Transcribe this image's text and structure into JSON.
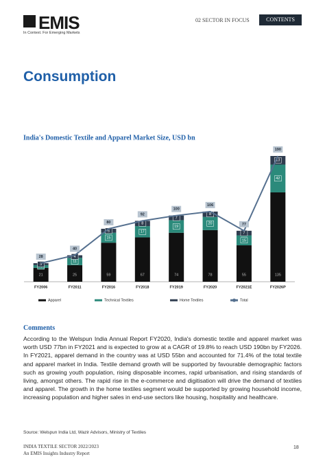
{
  "header": {
    "logo": "EMIS",
    "tagline": "In Context. For Emerging Markets",
    "section": "02 SECTOR IN FOCUS",
    "contents": "CONTENTS"
  },
  "title": "Consumption",
  "chart_data": {
    "type": "bar",
    "stacked": true,
    "title": "India's Domestic Textile and Apparel Market Size, USD bn",
    "categories": [
      "FY2006",
      "FY2011",
      "FY2016",
      "FY2018",
      "FY2019",
      "FY2020",
      "FY2021E",
      "FY2026P"
    ],
    "series": [
      {
        "name": "Apparel",
        "color": "#111111",
        "values": [
          21,
          25,
          59,
          67,
          74,
          78,
          55,
          135
        ]
      },
      {
        "name": "Technical Textiles",
        "color": "#2b8a7b",
        "values": [
          4,
          11,
          15,
          17,
          19,
          20,
          15,
          42
        ]
      },
      {
        "name": "Home Textiles",
        "color": "#2f3d4f",
        "values": [
          3,
          4,
          6,
          8,
          7,
          8,
          7,
          13
        ]
      },
      {
        "name": "Total",
        "type": "line",
        "color": "#55708f",
        "values": [
          28,
          40,
          80,
          92,
          100,
          106,
          77,
          190
        ]
      }
    ]
  },
  "comments": {
    "heading": "Comments",
    "text": "According to the Welspun India Annual Report FY2020, India's domestic textile and apparel market was worth USD 77bn in FY2021 and is expected to grow at a CAGR of 19.8% to reach USD 190bn by FY2026. In FY2021, apparel demand in the country was at USD 55bn and accounted for 71.4% of the total textile and apparel market in India. Textile demand growth will be supported by favourable demographic factors such as growing youth population, rising disposable incomes, rapid urbanisation, and rising standards of living, amongst others. The rapid rise in the e-commerce and digitisation will drive the demand of textiles and apparel. The growth in the home textiles segment would be supported by growing household income, increasing population and higher sales in end-use sectors like housing, hospitality and healthcare."
  },
  "source": "Source: Welspun India Ltd, Wazir Advisors, Ministry of Textiles",
  "footer": {
    "line1": "INDIA TEXTILE SECTOR 2022/2023",
    "line2": "An EMIS Insights Industry Report",
    "page": "18"
  }
}
